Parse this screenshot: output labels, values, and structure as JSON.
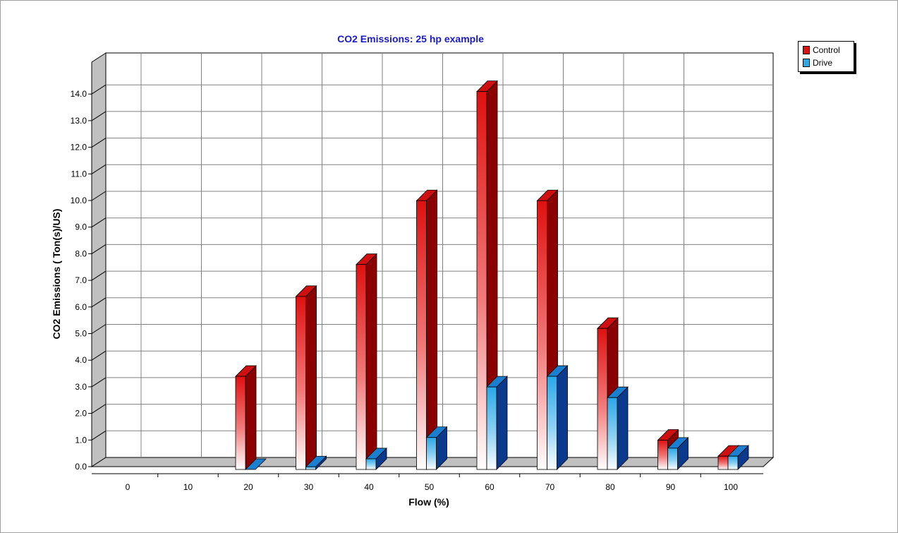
{
  "chart_data": {
    "type": "bar",
    "title": "CO2 Emissions: 25 hp example",
    "xlabel": "Flow (%)",
    "ylabel": "CO2 Emissions ( Ton(s)/US)",
    "categories": [
      "0",
      "10",
      "20",
      "30",
      "40",
      "50",
      "60",
      "70",
      "80",
      "90",
      "100"
    ],
    "series": [
      {
        "name": "Control",
        "values": [
          0,
          0,
          3.5,
          6.5,
          7.7,
          10.1,
          14.2,
          10.1,
          5.3,
          1.1,
          0.5
        ]
      },
      {
        "name": "Drive",
        "values": [
          0,
          0,
          0,
          0.1,
          0.4,
          1.2,
          3.1,
          3.5,
          2.7,
          0.8,
          0.5
        ]
      }
    ],
    "yticks": [
      "0.0",
      "1.0",
      "2.0",
      "3.0",
      "4.0",
      "5.0",
      "6.0",
      "7.0",
      "8.0",
      "9.0",
      "10.0",
      "11.0",
      "12.0",
      "13.0",
      "14.0"
    ],
    "ylim": [
      0,
      14.5
    ],
    "grid": true,
    "legend_position": "top-right",
    "colors": {
      "title": "#1a1acc",
      "control_front": "#e01010",
      "control_side": "#8b0000",
      "control_top": "#d01010",
      "drive_front": "#2aa8e8",
      "drive_side": "#0b3a8c",
      "drive_top": "#1a7fd0",
      "wall": "#c0c0c0",
      "grid": "#808080"
    }
  }
}
